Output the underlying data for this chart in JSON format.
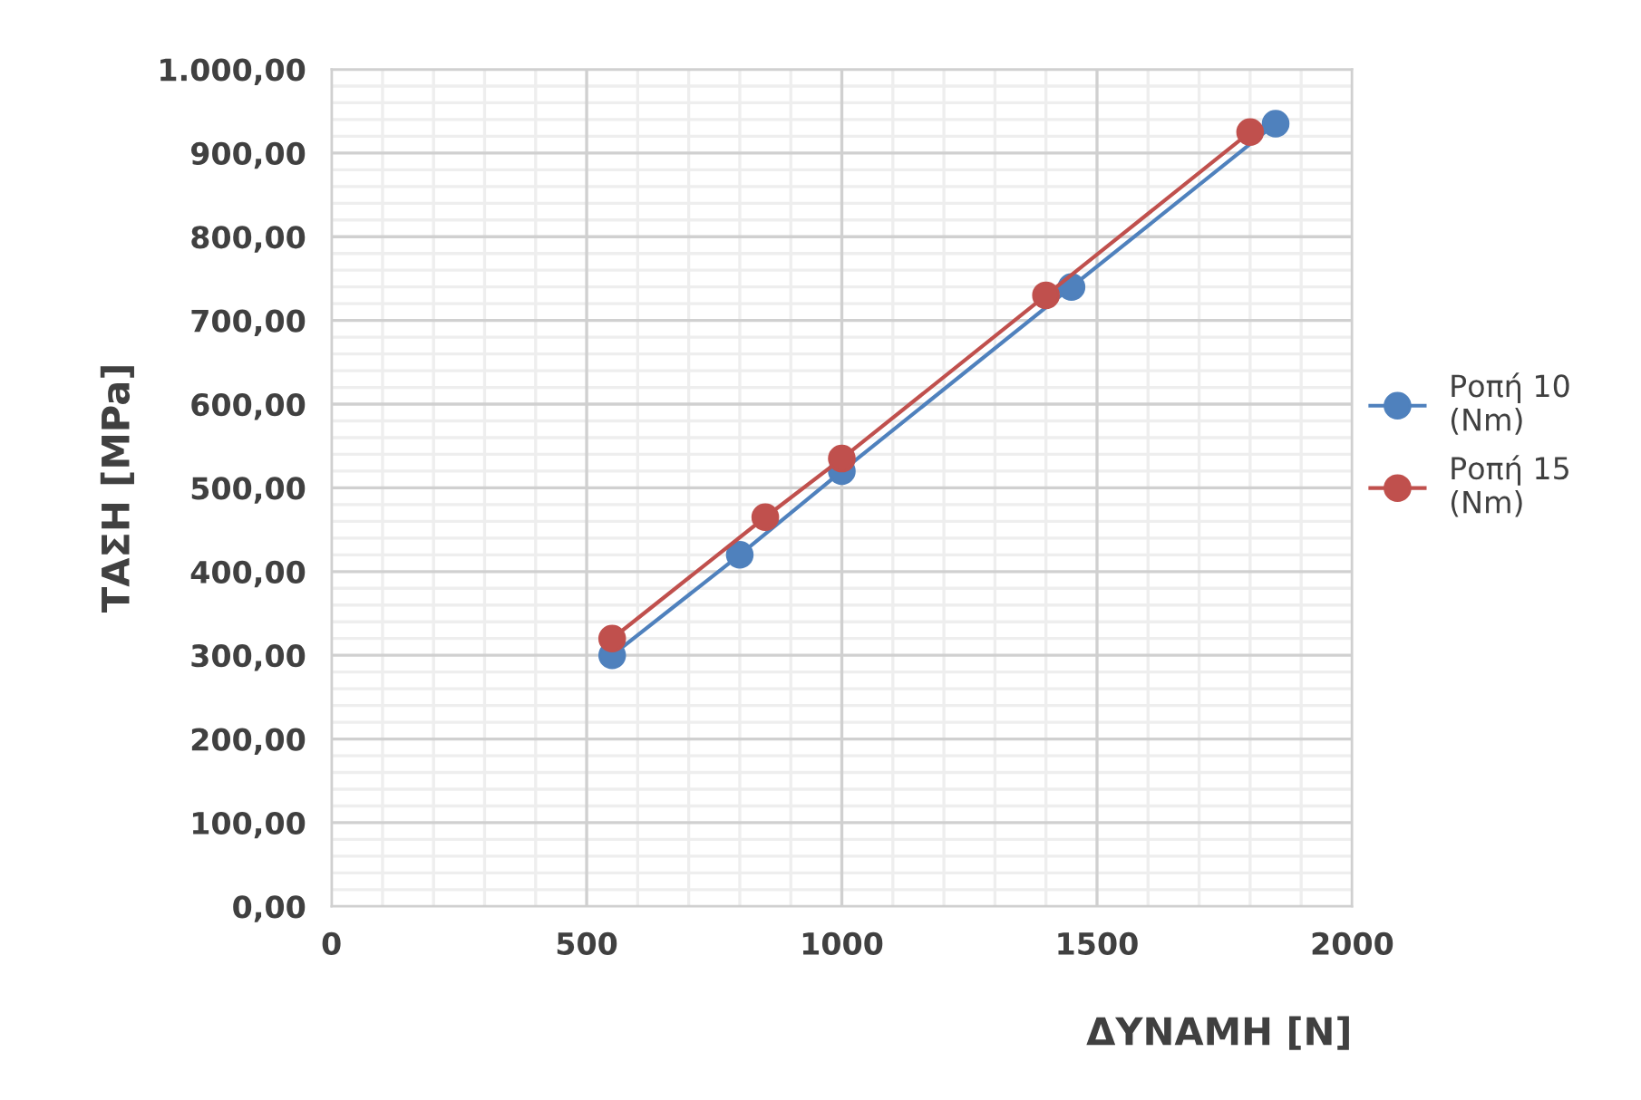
{
  "chart_data": {
    "type": "line",
    "xlabel": "ΔΥΝΑΜΗ [N]",
    "ylabel": "ΤΑΣΗ [MPa]",
    "series": [
      {
        "name": "Ροπή 10\n(Nm)",
        "color": "#4f81bd",
        "x": [
          550,
          800,
          1000,
          1450,
          1850
        ],
        "values": [
          300,
          420,
          520,
          740,
          935
        ]
      },
      {
        "name": "Ροπή 15\n(Nm)",
        "color": "#c0504d",
        "x": [
          550,
          850,
          1000,
          1400,
          1800
        ],
        "values": [
          320,
          465,
          535,
          730,
          925
        ]
      }
    ],
    "xlim": [
      0,
      2000
    ],
    "xticks": [
      0,
      500,
      1000,
      1500,
      2000
    ],
    "ylim": [
      0,
      1000
    ],
    "yticks": [
      {
        "value": 0,
        "label": "0,00"
      },
      {
        "value": 100,
        "label": "100,00"
      },
      {
        "value": 200,
        "label": "200,00"
      },
      {
        "value": 300,
        "label": "300,00"
      },
      {
        "value": 400,
        "label": "400,00"
      },
      {
        "value": 500,
        "label": "500,00"
      },
      {
        "value": 600,
        "label": "600,00"
      },
      {
        "value": 700,
        "label": "700,00"
      },
      {
        "value": 800,
        "label": "800,00"
      },
      {
        "value": 900,
        "label": "900,00"
      },
      {
        "value": 1000,
        "label": "1.000,00"
      }
    ],
    "grid": true,
    "legend": "right",
    "marker": "circle",
    "line_style": "solid"
  }
}
